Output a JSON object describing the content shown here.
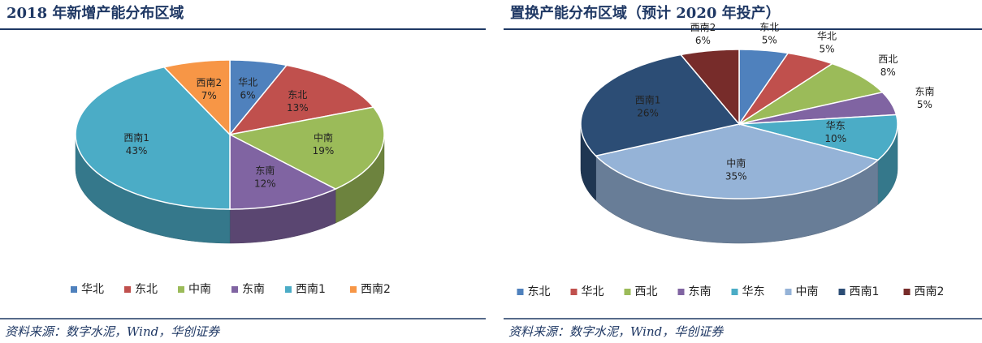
{
  "chart_data": [
    {
      "type": "pie",
      "title": "2018 年新增产能分布区域",
      "categories": [
        "华北",
        "东北",
        "中南",
        "东南",
        "西南1",
        "西南2"
      ],
      "values": [
        6,
        13,
        19,
        12,
        43,
        7
      ],
      "value_labels": [
        "6%",
        "13%",
        "19%",
        "12%",
        "43%",
        "7%"
      ],
      "colors": [
        "#4f81bd",
        "#c0504d",
        "#9bbb59",
        "#8064a2",
        "#4bacc6",
        "#f79646"
      ],
      "source": "资料来源：数字水泥，Wind，华创证券"
    },
    {
      "type": "pie",
      "title": "置换产能分布区域（预计 2020 年投产）",
      "categories": [
        "东北",
        "华北",
        "西北",
        "东南",
        "华东",
        "中南",
        "西南1",
        "西南2"
      ],
      "values": [
        5,
        5,
        8,
        5,
        10,
        35,
        26,
        6
      ],
      "value_labels": [
        "5%",
        "5%",
        "8%",
        "5%",
        "10%",
        "35%",
        "26%",
        "6%"
      ],
      "colors": [
        "#4f81bd",
        "#c0504d",
        "#9bbb59",
        "#8064a2",
        "#4bacc6",
        "#95b3d7",
        "#2c4d75",
        "#772c2a"
      ],
      "source": "资料来源：数字水泥，Wind，华创证券"
    }
  ]
}
